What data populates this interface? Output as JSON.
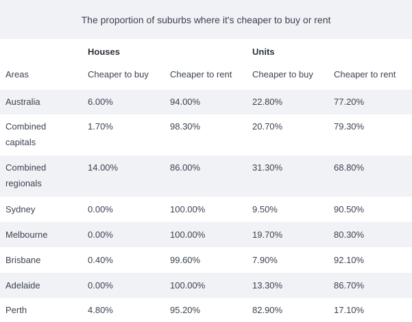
{
  "table": {
    "title": "The proportion of suburbs where it's cheaper to buy or rent",
    "groups": {
      "houses": "Houses",
      "units": "Units"
    },
    "columns": [
      "Areas",
      "Cheaper to buy",
      "Cheaper to rent",
      "Cheaper to buy",
      "Cheaper to rent"
    ],
    "rows": [
      {
        "area": "Australia",
        "houses_buy": "6.00%",
        "houses_rent": "94.00%",
        "units_buy": "22.80%",
        "units_rent": "77.20%"
      },
      {
        "area_line1": "Combined",
        "area_line2": "capitals",
        "houses_buy": "1.70%",
        "houses_rent": "98.30%",
        "units_buy": "20.70%",
        "units_rent": "79.30%"
      },
      {
        "area_line1": "Combined",
        "area_line2": "regionals",
        "houses_buy": "14.00%",
        "houses_rent": "86.00%",
        "units_buy": "31.30%",
        "units_rent": "68.80%"
      },
      {
        "area": "Sydney",
        "houses_buy": "0.00%",
        "houses_rent": "100.00%",
        "units_buy": "9.50%",
        "units_rent": "90.50%"
      },
      {
        "area": "Melbourne",
        "houses_buy": "0.00%",
        "houses_rent": "100.00%",
        "units_buy": "19.70%",
        "units_rent": "80.30%"
      },
      {
        "area": "Brisbane",
        "houses_buy": "0.40%",
        "houses_rent": "99.60%",
        "units_buy": "7.90%",
        "units_rent": "92.10%"
      },
      {
        "area": "Adelaide",
        "houses_buy": "0.00%",
        "houses_rent": "100.00%",
        "units_buy": "13.30%",
        "units_rent": "86.70%"
      },
      {
        "area": "Perth",
        "houses_buy": "4.80%",
        "houses_rent": "95.20%",
        "units_buy": "82.90%",
        "units_rent": "17.10%"
      }
    ]
  },
  "colors": {
    "shade": "#f0f2f6",
    "text": "#3b4250"
  }
}
